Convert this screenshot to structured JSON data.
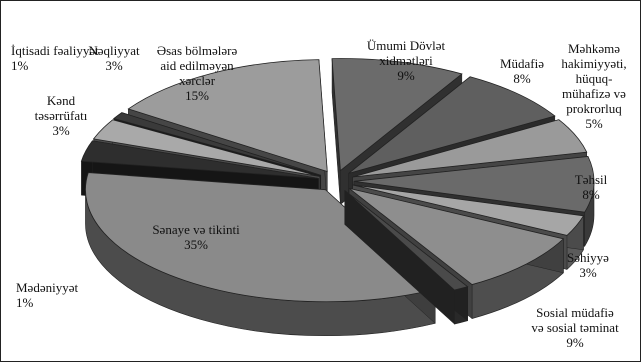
{
  "chart_data": {
    "type": "pie",
    "style": "3d-exploded",
    "slices": [
      {
        "label": "Ümumi Dövlət xidmətləri",
        "value": 9,
        "value_label": "9%",
        "color": "#6b6b6b"
      },
      {
        "label": "Müdafiə",
        "value": 8,
        "value_label": "8%",
        "color": "#5f5f5f"
      },
      {
        "label": "Məhkəmə hakimiyyəti, hüquq-mühafizə və prokrorluq",
        "value": 5,
        "value_label": "5%",
        "color": "#9a9a9a"
      },
      {
        "label": "Təhsil",
        "value": 8,
        "value_label": "8%",
        "color": "#6a6a6a"
      },
      {
        "label": "Səhiyyə",
        "value": 3,
        "value_label": "3%",
        "color": "#a6a6a6"
      },
      {
        "label": "Sosial müdafiə və sosial təminat",
        "value": 9,
        "value_label": "9%",
        "color": "#8e8e8e"
      },
      {
        "label": "Mədəniyyət",
        "value": 1,
        "value_label": "1%",
        "color": "#4a4a4a"
      },
      {
        "label": "Sənaye və tikinti",
        "value": 35,
        "value_label": "35%",
        "color": "#8a8a8a"
      },
      {
        "label": "Kənd təsərrüfatı",
        "value": 3,
        "value_label": "3%",
        "color": "#2e2e2e"
      },
      {
        "label": "Nəqliyyat",
        "value": 3,
        "value_label": "3%",
        "color": "#a9a9a9"
      },
      {
        "label": "İqtisadi fəaliyyət",
        "value": 1,
        "value_label": "1%",
        "color": "#3a3a3a"
      },
      {
        "label": "Əsas bölmələrə aid edilməyən xərclər",
        "value": 15,
        "value_label": "15%",
        "color": "#9c9c9c"
      }
    ]
  },
  "labels": {
    "umumi": "Ümumi Dövlət\nxidmətləri\n9%",
    "mudafie": "Müdafiə\n8%",
    "mehkeme": "Məhkəmə\nhakimiyyəti,\nhüquq-\nmühafizə və\nprokrorluq\n5%",
    "tehsil": "Təhsil\n8%",
    "sehiyye": "Səhiyyə\n3%",
    "sosial": "Sosial müdafiə\nvə sosial təminat\n9%",
    "medeniyyet": "Mədəniyyət\n1%",
    "senaye": "Sənaye və tikinti\n35%",
    "kend": "Kənd\ntəsərrüfatı\n3%",
    "iqtisadi": "İqtisadi fəaliyyət\n1%",
    "neqliyyat": "Nəqliyyat\n3%",
    "esas": "Əsas bölmələrə\naid edilməyən\nxərclər\n15%"
  }
}
